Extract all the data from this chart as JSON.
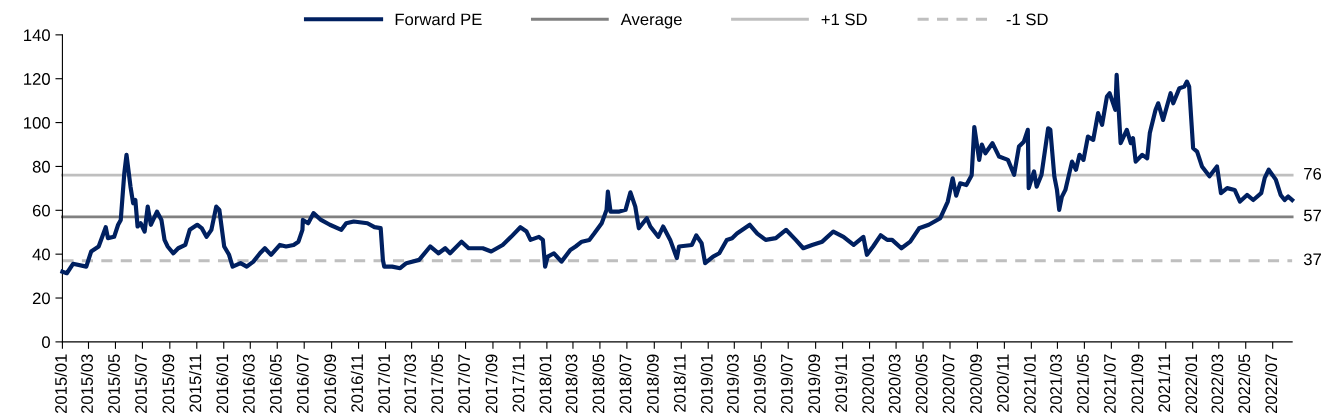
{
  "chart_data": {
    "type": "line",
    "legend": "top",
    "grid": false,
    "marker": "none",
    "x": [
      "2015-01-01",
      "2015-01-11",
      "2015-01-25",
      "2015-02-24",
      "2015-03-07",
      "2015-03-24",
      "2015-04-09",
      "2015-04-14",
      "2015-04-28",
      "2015-05-07",
      "2015-05-13",
      "2015-05-21",
      "2015-05-26",
      "2015-06-04",
      "2015-06-10",
      "2015-06-15",
      "2015-06-20",
      "2015-06-27",
      "2015-07-06",
      "2015-07-13",
      "2015-07-20",
      "2015-08-03",
      "2015-08-13",
      "2015-08-20",
      "2015-08-27",
      "2015-09-09",
      "2015-09-20",
      "2015-10-06",
      "2015-10-16",
      "2015-11-02",
      "2015-11-12",
      "2015-11-23",
      "2015-12-04",
      "2015-12-15",
      "2015-12-22",
      "2016-01-02",
      "2016-01-13",
      "2016-01-21",
      "2016-02-08",
      "2016-02-22",
      "2016-03-08",
      "2016-03-23",
      "2016-04-03",
      "2016-04-17",
      "2016-05-07",
      "2016-05-21",
      "2016-06-07",
      "2016-06-18",
      "2016-06-27",
      "2016-06-28",
      "2016-07-10",
      "2016-07-22",
      "2016-08-08",
      "2016-08-28",
      "2016-09-23",
      "2016-10-04",
      "2016-10-21",
      "2016-11-21",
      "2016-12-07",
      "2016-12-21",
      "2016-12-26",
      "2016-12-29",
      "2017-01-16",
      "2017-02-03",
      "2017-02-17",
      "2017-03-18",
      "2017-04-12",
      "2017-05-01",
      "2017-05-16",
      "2017-05-27",
      "2017-06-22",
      "2017-07-08",
      "2017-08-09",
      "2017-08-28",
      "2017-09-23",
      "2017-10-12",
      "2017-11-02",
      "2017-11-16",
      "2017-11-25",
      "2017-12-14",
      "2017-12-23",
      "2017-12-28",
      "2018-01-03",
      "2018-01-17",
      "2018-02-03",
      "2018-02-23",
      "2018-03-07",
      "2018-03-21",
      "2018-04-07",
      "2018-04-18",
      "2018-05-05",
      "2018-05-16",
      "2018-05-19",
      "2018-05-25",
      "2018-06-14",
      "2018-06-28",
      "2018-07-09",
      "2018-07-20",
      "2018-07-28",
      "2018-08-15",
      "2018-08-23",
      "2018-09-10",
      "2018-09-21",
      "2018-10-07",
      "2018-10-22",
      "2018-10-27",
      "2018-11-25",
      "2018-12-05",
      "2018-12-17",
      "2018-12-25",
      "2019-01-12",
      "2019-01-26",
      "2019-02-12",
      "2019-02-24",
      "2019-03-07",
      "2019-04-05",
      "2019-04-22",
      "2019-05-11",
      "2019-06-03",
      "2019-06-26",
      "2019-07-18",
      "2019-08-04",
      "2019-08-24",
      "2019-09-16",
      "2019-10-11",
      "2019-11-03",
      "2019-11-26",
      "2019-12-18",
      "2019-12-26",
      "2020-01-09",
      "2020-01-26",
      "2020-02-10",
      "2020-02-21",
      "2020-03-13",
      "2020-04-02",
      "2020-04-22",
      "2020-05-14",
      "2020-06-09",
      "2020-06-26",
      "2020-07-07",
      "2020-07-15",
      "2020-07-24",
      "2020-08-07",
      "2020-08-19",
      "2020-08-25",
      "2020-09-05",
      "2020-09-11",
      "2020-09-19",
      "2020-10-05",
      "2020-10-20",
      "2020-11-09",
      "2020-11-23",
      "2020-12-04",
      "2020-12-15",
      "2020-12-24",
      "2020-12-26",
      "2021-01-07",
      "2021-01-13",
      "2021-01-24",
      "2021-02-08",
      "2021-02-13",
      "2021-02-22",
      "2021-02-28",
      "2021-03-05",
      "2021-03-11",
      "2021-03-19",
      "2021-04-03",
      "2021-04-12",
      "2021-04-20",
      "2021-04-29",
      "2021-05-09",
      "2021-05-21",
      "2021-06-01",
      "2021-06-10",
      "2021-06-21",
      "2021-06-27",
      "2021-07-10",
      "2021-07-13",
      "2021-07-22",
      "2021-08-05",
      "2021-08-14",
      "2021-08-19",
      "2021-08-25",
      "2021-09-09",
      "2021-09-20",
      "2021-09-26",
      "2021-10-09",
      "2021-10-15",
      "2021-10-26",
      "2021-11-12",
      "2021-11-18",
      "2021-12-02",
      "2021-12-13",
      "2021-12-19",
      "2021-12-24",
      "2022-01-02",
      "2022-01-11",
      "2022-01-22",
      "2022-02-08",
      "2022-02-25",
      "2022-03-06",
      "2022-03-20",
      "2022-04-06",
      "2022-04-18",
      "2022-05-04",
      "2022-05-18",
      "2022-06-05",
      "2022-06-13",
      "2022-06-22",
      "2022-07-08",
      "2022-07-19",
      "2022-07-28",
      "2022-08-05",
      "2022-08-14"
    ],
    "series": [
      {
        "name": "Forward PE",
        "color": "#002060",
        "line_style": "solid",
        "values": [
          32,
          31.3,
          35.6,
          34.3,
          41.2,
          43.5,
          52.3,
          47.3,
          47.9,
          53.4,
          55.6,
          76.9,
          85.3,
          70.8,
          63.2,
          64.7,
          52.6,
          54.1,
          50.3,
          61.7,
          53.4,
          59.4,
          55.6,
          46.5,
          43.5,
          40.4,
          42.7,
          44.2,
          51.1,
          53.4,
          51.9,
          47.9,
          51.1,
          61.7,
          60.2,
          43.5,
          39.7,
          34.3,
          35.9,
          34.3,
          36.6,
          40.4,
          42.7,
          39.7,
          44.2,
          43.5,
          44.2,
          45.7,
          51.1,
          55.6,
          54.1,
          58.7,
          55.6,
          53.4,
          51.1,
          54.1,
          54.9,
          54.1,
          52.3,
          51.9,
          37.4,
          34.3,
          34.3,
          33.6,
          35.9,
          37.4,
          43.5,
          40.4,
          42.7,
          40.4,
          45.7,
          42.7,
          42.7,
          41.2,
          44.2,
          47.9,
          52.3,
          50.3,
          46.5,
          47.9,
          46.5,
          34.3,
          38.9,
          40.4,
          36.6,
          41.9,
          43.5,
          45.7,
          46.5,
          49.4,
          54.1,
          60.2,
          68.5,
          59.4,
          59.4,
          60.2,
          68.2,
          61.7,
          51.8,
          56.4,
          52.6,
          47.9,
          52.6,
          46.5,
          38.2,
          43.5,
          44.2,
          48.6,
          45.0,
          35.9,
          38.9,
          40.4,
          46.5,
          47.3,
          49.4,
          53.4,
          49.4,
          46.5,
          47.3,
          51.1,
          46.5,
          42.7,
          44.2,
          45.7,
          50.3,
          47.9,
          44.2,
          47.9,
          39.7,
          43.5,
          48.6,
          46.5,
          46.5,
          42.7,
          45.7,
          51.8,
          53.4,
          56.4,
          64.0,
          74.6,
          66.7,
          72.3,
          71.5,
          76.0,
          98,
          83.0,
          90,
          86.0,
          90.6,
          84.5,
          83.0,
          76.2,
          89.1,
          91.3,
          96.7,
          70.1,
          77.7,
          70.8,
          76.2,
          97.4,
          96.7,
          75.5,
          69.3,
          60.2,
          66.1,
          69.3,
          82.2,
          78.5,
          85.3,
          83.0,
          93.6,
          92.1,
          104.3,
          99.0,
          111.9,
          113.4,
          105.8,
          121.8,
          90.6,
          96.7,
          90.6,
          92.9,
          82.2,
          85.3,
          83.7,
          95.2,
          105.8,
          108.8,
          101.2,
          113.4,
          108.8,
          115.7,
          116.4,
          118.7,
          116.4,
          88.3,
          86.8,
          80,
          75.5,
          80,
          67.8,
          70.1,
          69.3,
          64.0,
          67.0,
          64.7,
          67.8,
          74.8,
          78.5,
          74.0,
          67.0,
          64.7,
          66.3,
          64.7
        ]
      },
      {
        "name": "Average",
        "color": "#808080",
        "line_style": "solid",
        "x": [
          "2015-01-01",
          "2022-08-14"
        ],
        "values": [
          57,
          57
        ],
        "value_labels": [
          null,
          "57"
        ]
      },
      {
        "name": "+1 SD",
        "color": "#bfbfbf",
        "line_style": "solid",
        "x": [
          "2015-01-01",
          "2022-08-14"
        ],
        "values": [
          76,
          76
        ],
        "value_labels": [
          null,
          "76"
        ]
      },
      {
        "name": "-1 SD",
        "color": "#bfbfbf",
        "line_style": "dashed",
        "x": [
          "2015-01-01",
          "2022-08-14"
        ],
        "values": [
          37,
          37
        ],
        "value_labels": [
          null,
          "37"
        ]
      }
    ],
    "xlim": [
      "2015-01-01",
      "2022-08-14"
    ],
    "xticks": [
      {
        "value": "2015-01-01",
        "label": "2015/01"
      },
      {
        "value": "2015-03-01",
        "label": "2015/03"
      },
      {
        "value": "2015-05-01",
        "label": "2015/05"
      },
      {
        "value": "2015-07-01",
        "label": "2015/07"
      },
      {
        "value": "2015-09-01",
        "label": "2015/09"
      },
      {
        "value": "2015-11-01",
        "label": "2015/11"
      },
      {
        "value": "2016-01-01",
        "label": "2016/01"
      },
      {
        "value": "2016-03-01",
        "label": "2016/03"
      },
      {
        "value": "2016-05-01",
        "label": "2016/05"
      },
      {
        "value": "2016-07-01",
        "label": "2016/07"
      },
      {
        "value": "2016-09-01",
        "label": "2016/09"
      },
      {
        "value": "2016-11-01",
        "label": "2016/11"
      },
      {
        "value": "2017-01-01",
        "label": "2017/01"
      },
      {
        "value": "2017-03-01",
        "label": "2017/03"
      },
      {
        "value": "2017-05-01",
        "label": "2017/05"
      },
      {
        "value": "2017-07-01",
        "label": "2017/07"
      },
      {
        "value": "2017-09-01",
        "label": "2017/09"
      },
      {
        "value": "2017-11-01",
        "label": "2017/11"
      },
      {
        "value": "2018-01-01",
        "label": "2018/01"
      },
      {
        "value": "2018-03-01",
        "label": "2018/03"
      },
      {
        "value": "2018-05-01",
        "label": "2018/05"
      },
      {
        "value": "2018-07-01",
        "label": "2018/07"
      },
      {
        "value": "2018-09-01",
        "label": "2018/09"
      },
      {
        "value": "2018-11-01",
        "label": "2018/11"
      },
      {
        "value": "2019-01-01",
        "label": "2019/01"
      },
      {
        "value": "2019-03-01",
        "label": "2019/03"
      },
      {
        "value": "2019-05-01",
        "label": "2019/05"
      },
      {
        "value": "2019-07-01",
        "label": "2019/07"
      },
      {
        "value": "2019-09-01",
        "label": "2019/09"
      },
      {
        "value": "2019-11-01",
        "label": "2019/11"
      },
      {
        "value": "2020-01-01",
        "label": "2020/01"
      },
      {
        "value": "2020-03-01",
        "label": "2020/03"
      },
      {
        "value": "2020-05-01",
        "label": "2020/05"
      },
      {
        "value": "2020-07-01",
        "label": "2020/07"
      },
      {
        "value": "2020-09-01",
        "label": "2020/09"
      },
      {
        "value": "2020-11-01",
        "label": "2020/11"
      },
      {
        "value": "2021-01-01",
        "label": "2021/01"
      },
      {
        "value": "2021-03-01",
        "label": "2021/03"
      },
      {
        "value": "2021-05-01",
        "label": "2021/05"
      },
      {
        "value": "2021-07-01",
        "label": "2021/07"
      },
      {
        "value": "2021-09-01",
        "label": "2021/09"
      },
      {
        "value": "2021-11-01",
        "label": "2021/11"
      },
      {
        "value": "2022-01-01",
        "label": "2022/01"
      },
      {
        "value": "2022-03-01",
        "label": "2022/03"
      },
      {
        "value": "2022-05-01",
        "label": "2022/05"
      },
      {
        "value": "2022-07-01",
        "label": "2022/07"
      }
    ],
    "ylim": [
      0,
      140
    ],
    "yticks": [
      0,
      20,
      40,
      60,
      80,
      100,
      120,
      140
    ]
  }
}
